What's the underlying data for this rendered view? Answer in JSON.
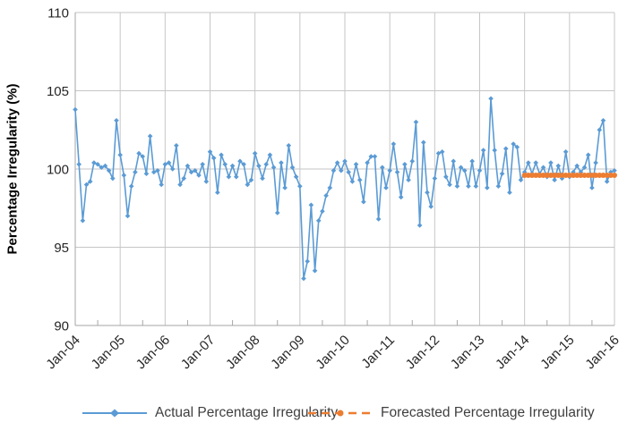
{
  "chart_data": {
    "type": "line",
    "title": "",
    "xlabel": "",
    "ylabel": "Percentage Irregularity (%)",
    "ylim": [
      90,
      110
    ],
    "y_ticks": [
      110,
      105,
      100,
      95,
      90
    ],
    "x_ticks": [
      "Jan-04",
      "Jan-05",
      "Jan-06",
      "Jan-07",
      "Jan-08",
      "Jan-09",
      "Jan-10",
      "Jan-11",
      "Jan-12",
      "Jan-13",
      "Jan-14",
      "Jan-15",
      "Jan-16"
    ],
    "x_unit": "month",
    "n_points": 145,
    "grid": true,
    "legend_position": "bottom",
    "colors": {
      "actual": "#5B9BD5",
      "forecast": "#ED7D31",
      "gridline": "#C6C6C6",
      "axis": "#A6A6A6",
      "tick_text": "#262626",
      "legend_text": "#3f3f3f"
    },
    "series": [
      {
        "name": "Actual Percentage Irregularity",
        "color": "#5B9BD5",
        "marker": "diamond",
        "line_style": "solid",
        "start_index": 0,
        "values": [
          103.8,
          100.3,
          96.7,
          99.0,
          99.2,
          100.4,
          100.3,
          100.1,
          100.2,
          99.9,
          99.4,
          103.1,
          100.9,
          99.6,
          97.0,
          98.9,
          99.8,
          101.0,
          100.8,
          99.7,
          102.1,
          99.8,
          99.9,
          99.0,
          100.3,
          100.4,
          100.0,
          101.5,
          99.0,
          99.4,
          100.2,
          99.8,
          99.9,
          99.6,
          100.3,
          99.2,
          101.1,
          100.7,
          98.5,
          100.9,
          100.3,
          99.5,
          100.2,
          99.5,
          100.5,
          100.3,
          99.0,
          99.3,
          101.0,
          100.2,
          99.4,
          100.3,
          100.9,
          100.1,
          97.2,
          100.4,
          98.8,
          101.5,
          100.1,
          99.5,
          98.9,
          93.0,
          94.1,
          97.7,
          93.5,
          96.7,
          97.3,
          98.3,
          98.8,
          99.9,
          100.4,
          99.9,
          100.5,
          99.8,
          99.2,
          100.3,
          99.3,
          97.9,
          100.4,
          100.8,
          100.8,
          96.8,
          100.1,
          98.8,
          99.9,
          101.6,
          99.8,
          98.2,
          100.3,
          99.3,
          100.5,
          103.0,
          96.4,
          101.7,
          98.5,
          97.6,
          99.4,
          101.0,
          101.1,
          99.5,
          99.0,
          100.5,
          98.9,
          100.1,
          99.9,
          98.9,
          100.5,
          98.9,
          99.9,
          101.2,
          98.8,
          104.5,
          101.2,
          98.9,
          99.7,
          101.3,
          98.5,
          101.6,
          101.4,
          99.3,
          99.8,
          100.4,
          99.7,
          100.4,
          99.7,
          100.1,
          99.5,
          100.4,
          99.3,
          100.2,
          99.4,
          101.1,
          99.5,
          99.8,
          100.2,
          99.8,
          100.1,
          100.9,
          98.8,
          100.4,
          102.5,
          103.1,
          99.2,
          99.8,
          99.9
        ]
      },
      {
        "name": "Forecasted Percentage Irregularity",
        "color": "#ED7D31",
        "marker": "circle",
        "line_style": "dashed",
        "start_index": 120,
        "start_tick": "Jan-14",
        "values": [
          99.6,
          99.6,
          99.6,
          99.6,
          99.6,
          99.6,
          99.6,
          99.6,
          99.6,
          99.6,
          99.6,
          99.6,
          99.6,
          99.6,
          99.6,
          99.6,
          99.6,
          99.6,
          99.6,
          99.6,
          99.6,
          99.6,
          99.6,
          99.6,
          99.6
        ]
      }
    ]
  }
}
